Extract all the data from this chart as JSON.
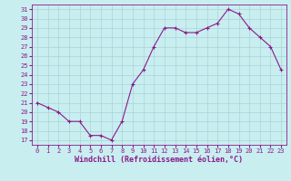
{
  "x": [
    0,
    1,
    2,
    3,
    4,
    5,
    6,
    7,
    8,
    9,
    10,
    11,
    12,
    13,
    14,
    15,
    16,
    17,
    18,
    19,
    20,
    21,
    22,
    23
  ],
  "y": [
    21,
    20.5,
    20,
    19,
    19,
    17.5,
    17.5,
    17,
    19,
    23,
    24.5,
    27,
    29,
    29,
    28.5,
    28.5,
    29,
    29.5,
    31,
    30.5,
    29,
    28,
    27,
    24.5
  ],
  "line_color": "#8b1a8b",
  "marker_color": "#8b1a8b",
  "bg_color": "#c8eef0",
  "grid_color": "#aad4d8",
  "xlabel": "Windchill (Refroidissement éolien,°C)",
  "xlabel_color": "#8b1a8b",
  "tick_color": "#8b1a8b",
  "ylim": [
    17,
    31
  ],
  "xlim": [
    0,
    23
  ],
  "yticks": [
    17,
    18,
    19,
    20,
    21,
    22,
    23,
    24,
    25,
    26,
    27,
    28,
    29,
    30,
    31
  ],
  "xtick_labels": [
    "0",
    "1",
    "2",
    "3",
    "4",
    "5",
    "6",
    "7",
    "8",
    "9",
    "10",
    "11",
    "12",
    "13",
    "14",
    "15",
    "16",
    "17",
    "18",
    "19",
    "20",
    "21",
    "22",
    "23"
  ]
}
